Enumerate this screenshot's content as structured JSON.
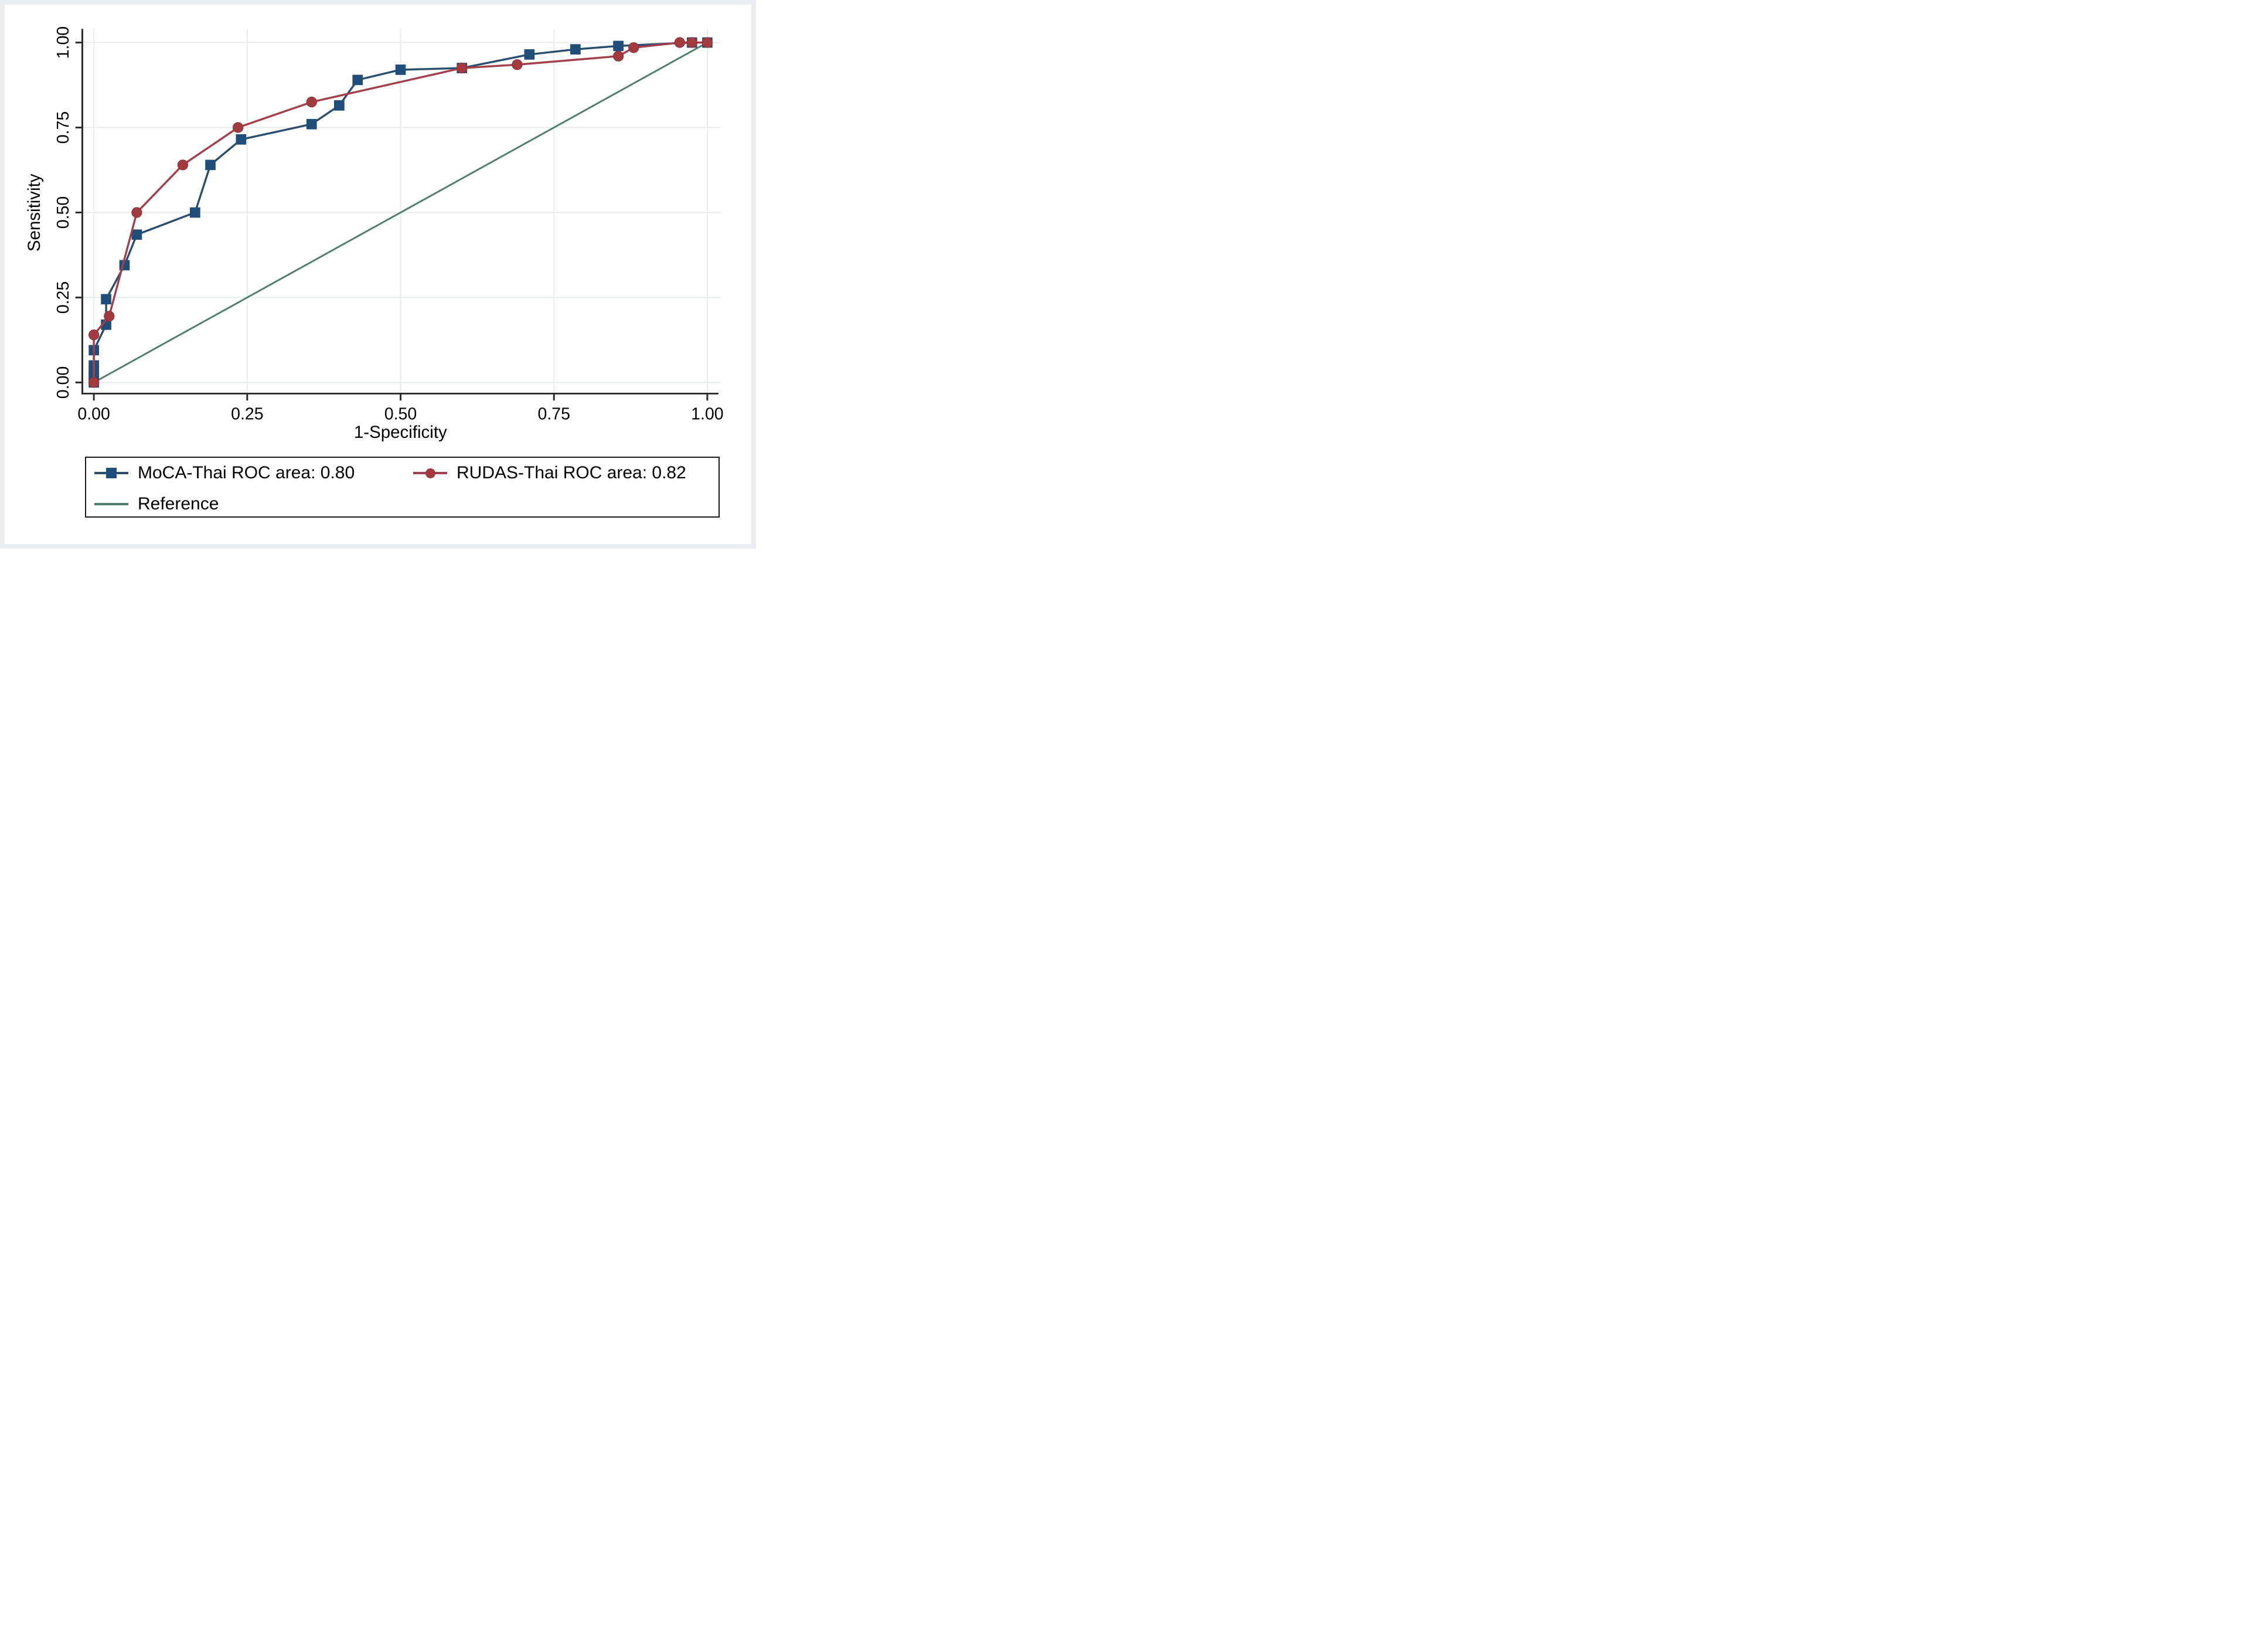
{
  "chart_data": {
    "type": "line",
    "subtype": "roc-curve",
    "title": "",
    "xlabel": "1-Specificity",
    "ylabel": "Sensitivity",
    "xlim": [
      0,
      1
    ],
    "ylim": [
      0,
      1
    ],
    "grid": true,
    "legend_position": "bottom-box",
    "x_ticks": {
      "values": [
        0,
        0.25,
        0.5,
        0.75,
        1
      ],
      "labels": [
        "0.00",
        "0.25",
        "0.50",
        "0.75",
        "1.00"
      ]
    },
    "y_ticks": {
      "values": [
        0,
        0.25,
        0.5,
        0.75,
        1
      ],
      "labels": [
        "0.00",
        "0.25",
        "0.50",
        "0.75",
        "1.00"
      ]
    },
    "colors": {
      "moca_line": "#2a4e6e",
      "moca_fill": "#1f4e7a",
      "rudas_line": "#a23f4b",
      "rudas_fill": "#a23a3e",
      "rudas_edge": "#8a3138",
      "reference_line": "#4f7e6d",
      "gridline": "#e7edee",
      "axis": "#2b2b2b"
    },
    "series": [
      {
        "name": "MoCA-Thai ROC area: 0.80",
        "marker": "square",
        "points": [
          [
            0,
            0
          ],
          [
            0,
            0.01
          ],
          [
            0,
            0.02
          ],
          [
            0,
            0.035
          ],
          [
            0,
            0.05
          ],
          [
            0,
            0.095
          ],
          [
            0.02,
            0.17
          ],
          [
            0.02,
            0.245
          ],
          [
            0.05,
            0.345
          ],
          [
            0.07,
            0.435
          ],
          [
            0.165,
            0.5
          ],
          [
            0.19,
            0.64
          ],
          [
            0.24,
            0.715
          ],
          [
            0.355,
            0.76
          ],
          [
            0.4,
            0.815
          ],
          [
            0.43,
            0.89
          ],
          [
            0.5,
            0.92
          ],
          [
            0.6,
            0.925
          ],
          [
            0.71,
            0.965
          ],
          [
            0.785,
            0.98
          ],
          [
            0.855,
            0.99
          ],
          [
            0.975,
            1
          ],
          [
            1,
            1
          ]
        ]
      },
      {
        "name": "RUDAS-Thai ROC area: 0.82",
        "marker": "circle",
        "points": [
          [
            0,
            0
          ],
          [
            0,
            0.14
          ],
          [
            0.025,
            0.195
          ],
          [
            0.07,
            0.5
          ],
          [
            0.145,
            0.64
          ],
          [
            0.235,
            0.75
          ],
          [
            0.355,
            0.825
          ],
          [
            0.6,
            0.925
          ],
          [
            0.69,
            0.935
          ],
          [
            0.855,
            0.96
          ],
          [
            0.88,
            0.985
          ],
          [
            0.955,
            1
          ],
          [
            0.975,
            1
          ],
          [
            1,
            1
          ]
        ]
      },
      {
        "name": "Reference",
        "marker": "none",
        "points": [
          [
            0,
            0
          ],
          [
            1,
            1
          ]
        ]
      }
    ]
  },
  "legend": {
    "moca_label": "MoCA-Thai ROC area: 0.80",
    "rudas_label": "RUDAS-Thai ROC area: 0.82",
    "reference_label": "Reference"
  }
}
